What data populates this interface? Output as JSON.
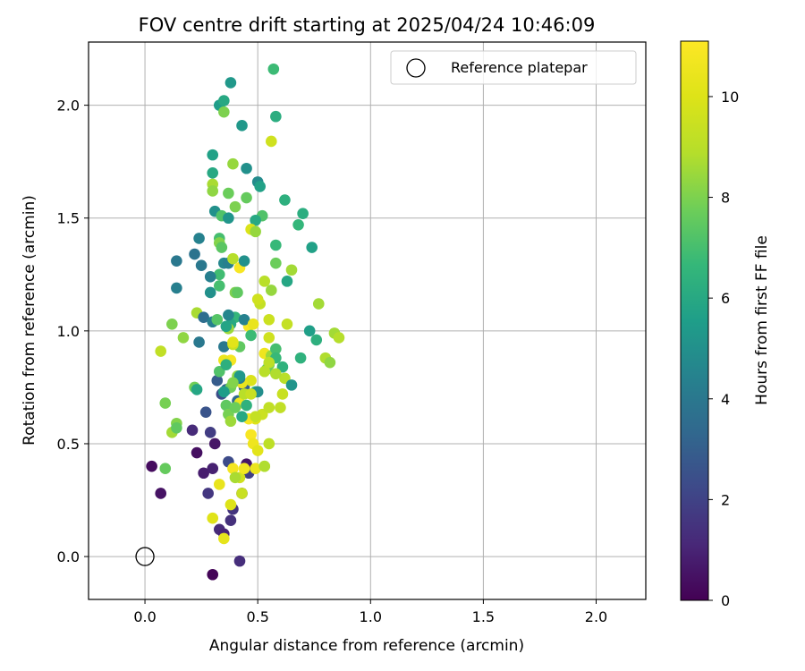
{
  "chart_data": {
    "type": "scatter",
    "title": "FOV centre drift starting at 2025/04/24 10:46:09",
    "xlabel": "Angular distance from reference (arcmin)",
    "ylabel": "Rotation from reference (arcmin)",
    "xlim": [
      -0.25,
      2.22
    ],
    "ylim": [
      -0.19,
      2.28
    ],
    "xticks": [
      0.0,
      0.5,
      1.0,
      1.5,
      2.0
    ],
    "xtick_labels": [
      "0.0",
      "0.5",
      "1.0",
      "1.5",
      "2.0"
    ],
    "yticks": [
      0.0,
      0.5,
      1.0,
      1.5,
      2.0
    ],
    "ytick_labels": [
      "0.0",
      "0.5",
      "1.0",
      "1.5",
      "2.0"
    ],
    "grid": true,
    "legend": {
      "location": "upper right",
      "entries": [
        "Reference platepar"
      ]
    },
    "reference_point": {
      "x": 0.0,
      "y": 0.0
    },
    "colorbar": {
      "label": "Hours from first FF file",
      "colormap": "viridis",
      "range": [
        0,
        11.1
      ],
      "ticks": [
        0,
        2,
        4,
        6,
        8,
        10
      ],
      "tick_labels": [
        "0",
        "2",
        "4",
        "6",
        "8",
        "10"
      ]
    },
    "points": [
      [
        0.3,
        -0.08,
        0.1
      ],
      [
        0.42,
        -0.02,
        1.3
      ],
      [
        0.03,
        0.4,
        0.3
      ],
      [
        0.07,
        0.28,
        0.5
      ],
      [
        0.23,
        0.46,
        0.4
      ],
      [
        0.26,
        0.37,
        0.8
      ],
      [
        0.3,
        0.39,
        0.9
      ],
      [
        0.31,
        0.5,
        0.6
      ],
      [
        0.29,
        0.55,
        1.8
      ],
      [
        0.28,
        0.28,
        1.6
      ],
      [
        0.33,
        0.12,
        1.2
      ],
      [
        0.35,
        0.1,
        1.0
      ],
      [
        0.38,
        0.16,
        1.4
      ],
      [
        0.39,
        0.21,
        1.5
      ],
      [
        0.37,
        0.42,
        2.3
      ],
      [
        0.43,
        0.28,
        0.9
      ],
      [
        0.45,
        0.41,
        0.6
      ],
      [
        0.46,
        0.37,
        1.9
      ],
      [
        0.21,
        0.56,
        1.2
      ],
      [
        0.27,
        0.64,
        2.6
      ],
      [
        0.34,
        0.72,
        2.4
      ],
      [
        0.32,
        0.78,
        2.9
      ],
      [
        0.36,
        0.74,
        3.1
      ],
      [
        0.41,
        0.69,
        3.4
      ],
      [
        0.44,
        0.75,
        3.0
      ],
      [
        0.3,
        0.17,
        10.1
      ],
      [
        0.35,
        0.08,
        10.3
      ],
      [
        0.38,
        0.23,
        10.0
      ],
      [
        0.42,
        0.35,
        9.6
      ],
      [
        0.43,
        0.28,
        9.4
      ],
      [
        0.33,
        0.32,
        10.4
      ],
      [
        0.39,
        0.39,
        10.8
      ],
      [
        0.44,
        0.39,
        10.7
      ],
      [
        0.49,
        0.39,
        10.5
      ],
      [
        0.53,
        0.4,
        9.0
      ],
      [
        0.47,
        0.54,
        10.9
      ],
      [
        0.48,
        0.5,
        10.6
      ],
      [
        0.5,
        0.47,
        10.2
      ],
      [
        0.49,
        0.61,
        10.0
      ],
      [
        0.52,
        0.63,
        9.5
      ],
      [
        0.55,
        0.66,
        9.2
      ],
      [
        0.46,
        0.61,
        10.8
      ],
      [
        0.42,
        0.68,
        10.5
      ],
      [
        0.47,
        0.78,
        9.9
      ],
      [
        0.53,
        0.9,
        10.6
      ],
      [
        0.46,
        1.02,
        10.9
      ],
      [
        0.42,
        1.28,
        10.9
      ],
      [
        0.38,
        0.87,
        10.8
      ],
      [
        0.35,
        0.87,
        10.5
      ],
      [
        0.43,
        0.77,
        10.4
      ],
      [
        0.41,
        0.8,
        8.3
      ],
      [
        0.44,
        0.72,
        9.0
      ],
      [
        0.38,
        0.75,
        7.8
      ],
      [
        0.36,
        0.67,
        7.5
      ],
      [
        0.37,
        0.63,
        7.9
      ],
      [
        0.4,
        0.66,
        7.7
      ],
      [
        0.43,
        0.62,
        6.0
      ],
      [
        0.38,
        0.6,
        8.5
      ],
      [
        0.4,
        0.35,
        8.7
      ],
      [
        0.55,
        0.5,
        9.1
      ],
      [
        0.53,
        0.4,
        8.8
      ],
      [
        0.6,
        0.66,
        9.2
      ],
      [
        0.61,
        0.72,
        9.4
      ],
      [
        0.62,
        0.79,
        9.0
      ],
      [
        0.57,
        0.88,
        8.6
      ],
      [
        0.55,
        0.85,
        8.0
      ],
      [
        0.54,
        0.83,
        7.8
      ],
      [
        0.56,
        0.89,
        8.5
      ],
      [
        0.58,
        0.92,
        7.0
      ],
      [
        0.61,
        0.84,
        6.4
      ],
      [
        0.55,
        0.97,
        9.6
      ],
      [
        0.55,
        1.05,
        9.5
      ],
      [
        0.63,
        1.03,
        9.3
      ],
      [
        0.65,
        0.76,
        5.2
      ],
      [
        0.69,
        0.88,
        6.4
      ],
      [
        0.7,
        1.52,
        6.2
      ],
      [
        0.68,
        1.47,
        6.6
      ],
      [
        0.74,
        1.37,
        5.7
      ],
      [
        0.62,
        1.58,
        6.3
      ],
      [
        0.63,
        1.22,
        5.9
      ],
      [
        0.65,
        1.27,
        8.6
      ],
      [
        0.58,
        1.3,
        7.7
      ],
      [
        0.58,
        1.38,
        6.7
      ],
      [
        0.56,
        1.18,
        8.4
      ],
      [
        0.51,
        1.12,
        9.3
      ],
      [
        0.5,
        1.14,
        9.6
      ],
      [
        0.53,
        1.22,
        9.0
      ],
      [
        0.52,
        1.51,
        7.2
      ],
      [
        0.49,
        1.49,
        6.0
      ],
      [
        0.47,
        1.45,
        9.9
      ],
      [
        0.49,
        1.44,
        8.4
      ],
      [
        0.45,
        1.59,
        7.6
      ],
      [
        0.45,
        1.72,
        5.0
      ],
      [
        0.5,
        1.66,
        4.8
      ],
      [
        0.51,
        1.64,
        5.7
      ],
      [
        0.56,
        1.84,
        9.6
      ],
      [
        0.57,
        2.16,
        6.8
      ],
      [
        0.58,
        1.95,
        6.2
      ],
      [
        0.43,
        1.91,
        5.3
      ],
      [
        0.38,
        2.1,
        5.3
      ],
      [
        0.33,
        2.0,
        5.5
      ],
      [
        0.35,
        2.02,
        6.0
      ],
      [
        0.35,
        1.97,
        8.0
      ],
      [
        0.39,
        1.74,
        8.4
      ],
      [
        0.37,
        1.61,
        7.7
      ],
      [
        0.3,
        1.65,
        8.7
      ],
      [
        0.3,
        1.62,
        8.3
      ],
      [
        0.3,
        1.7,
        6.0
      ],
      [
        0.3,
        1.78,
        5.7
      ],
      [
        0.31,
        1.53,
        5.0
      ],
      [
        0.34,
        1.51,
        7.2
      ],
      [
        0.37,
        1.5,
        5.2
      ],
      [
        0.4,
        1.55,
        8.0
      ],
      [
        0.33,
        1.41,
        7.0
      ],
      [
        0.33,
        1.39,
        8.1
      ],
      [
        0.34,
        1.37,
        7.4
      ],
      [
        0.35,
        1.3,
        4.6
      ],
      [
        0.37,
        1.3,
        4.3
      ],
      [
        0.39,
        1.32,
        8.9
      ],
      [
        0.33,
        1.25,
        6.9
      ],
      [
        0.33,
        1.2,
        7.0
      ],
      [
        0.29,
        1.24,
        4.3
      ],
      [
        0.29,
        1.17,
        5.0
      ],
      [
        0.25,
        1.29,
        4.0
      ],
      [
        0.24,
        1.41,
        4.4
      ],
      [
        0.22,
        1.34,
        3.8
      ],
      [
        0.14,
        1.31,
        4.0
      ],
      [
        0.14,
        1.19,
        4.3
      ],
      [
        0.12,
        1.03,
        8.0
      ],
      [
        0.17,
        0.97,
        8.3
      ],
      [
        0.07,
        0.91,
        9.2
      ],
      [
        0.09,
        0.68,
        7.9
      ],
      [
        0.12,
        0.55,
        8.6
      ],
      [
        0.14,
        0.59,
        8.1
      ],
      [
        0.14,
        0.57,
        7.5
      ],
      [
        0.09,
        0.39,
        7.6
      ],
      [
        0.23,
        1.08,
        8.7
      ],
      [
        0.26,
        1.06,
        3.6
      ],
      [
        0.3,
        1.04,
        4.3
      ],
      [
        0.32,
        1.05,
        7.3
      ],
      [
        0.35,
        0.93,
        4.0
      ],
      [
        0.4,
        1.06,
        6.6
      ],
      [
        0.4,
        1.17,
        8.0
      ],
      [
        0.41,
        1.17,
        7.5
      ],
      [
        0.44,
        1.05,
        4.4
      ],
      [
        0.48,
        1.03,
        10.4
      ],
      [
        0.47,
        0.98,
        6.8
      ],
      [
        0.42,
        0.93,
        7.5
      ],
      [
        0.38,
        1.03,
        6.0
      ],
      [
        0.37,
        1.01,
        8.5
      ],
      [
        0.39,
        0.94,
        9.5
      ],
      [
        0.39,
        0.95,
        10.2
      ],
      [
        0.42,
        0.79,
        4.3
      ],
      [
        0.42,
        0.8,
        5.3
      ],
      [
        0.33,
        0.82,
        7.2
      ],
      [
        0.36,
        0.85,
        6.3
      ],
      [
        0.35,
        0.73,
        5.5
      ],
      [
        0.39,
        0.77,
        8.1
      ],
      [
        0.22,
        0.75,
        7.8
      ],
      [
        0.24,
        0.95,
        4.0
      ],
      [
        0.23,
        0.74,
        5.9
      ],
      [
        0.37,
        1.07,
        4.6
      ],
      [
        0.44,
        1.31,
        5.0
      ],
      [
        0.36,
        1.02,
        5.8
      ],
      [
        0.58,
        0.88,
        6.7
      ],
      [
        0.49,
        0.73,
        6.5
      ],
      [
        0.5,
        0.73,
        4.9
      ],
      [
        0.73,
        1.0,
        5.6
      ],
      [
        0.76,
        0.96,
        6.3
      ],
      [
        0.77,
        1.12,
        8.6
      ],
      [
        0.8,
        0.88,
        8.8
      ],
      [
        0.82,
        0.86,
        8.3
      ],
      [
        0.84,
        0.99,
        8.6
      ],
      [
        0.86,
        0.97,
        8.9
      ],
      [
        0.58,
        0.81,
        8.8
      ],
      [
        0.53,
        0.82,
        9.0
      ],
      [
        0.55,
        0.86,
        9.1
      ],
      [
        0.45,
        0.67,
        6.4
      ],
      [
        0.47,
        0.72,
        9.4
      ],
      [
        0.49,
        0.62,
        9.3
      ]
    ]
  }
}
